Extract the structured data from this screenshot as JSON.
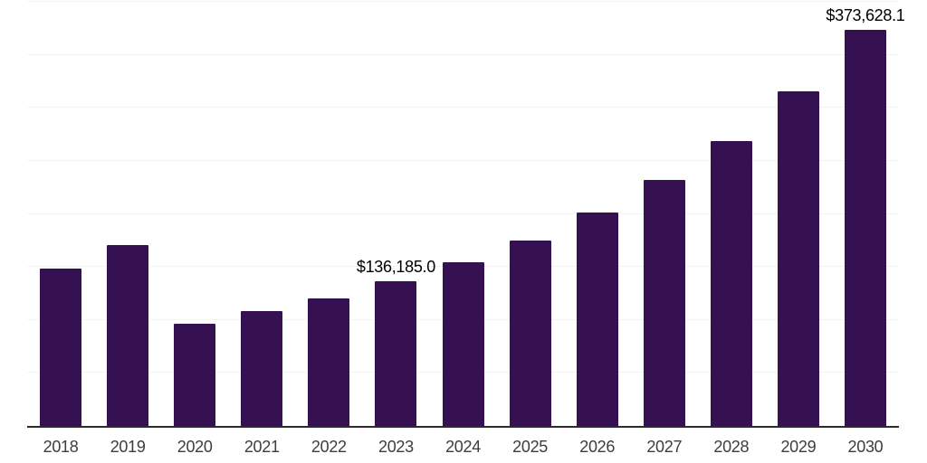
{
  "chart_data": {
    "type": "bar",
    "title": "",
    "xlabel": "",
    "ylabel": "",
    "categories": [
      "2018",
      "2019",
      "2020",
      "2021",
      "2022",
      "2023",
      "2024",
      "2025",
      "2026",
      "2027",
      "2028",
      "2029",
      "2030"
    ],
    "values": [
      148400,
      170400,
      96700,
      108500,
      120400,
      136185.0,
      154300,
      174700,
      201000,
      232400,
      268800,
      315500,
      373628.1
    ],
    "data_labels": [
      {
        "index": 5,
        "text": "$136,185.0"
      },
      {
        "index": 12,
        "text": "$373,628.1"
      }
    ],
    "ylim": [
      0,
      400000
    ],
    "gridline_step": 50000,
    "grid": "horizontal-only",
    "legend": "none",
    "y_axis_labels_visible": false,
    "colors": {
      "bar": "#361151",
      "gridline": "#f3f3f3",
      "axis_line": "#2b2b2b",
      "tick_label": "#3d3d3d",
      "data_label": "#000000",
      "background": "#ffffff"
    }
  }
}
